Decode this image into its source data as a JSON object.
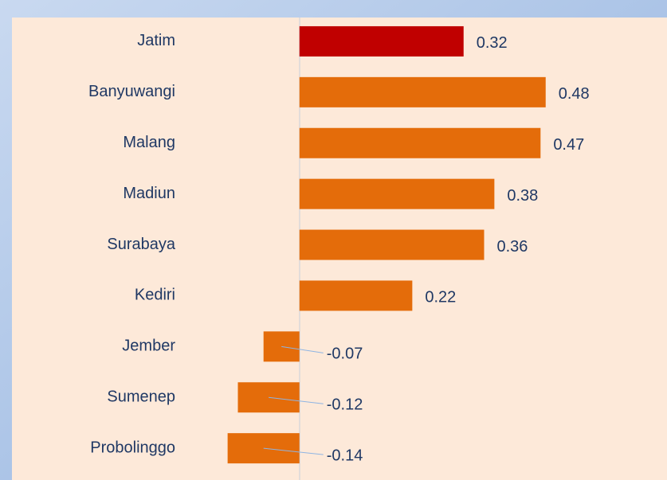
{
  "chart_data": {
    "type": "bar",
    "orientation": "horizontal",
    "categories": [
      "Jatim",
      "Banyuwangi",
      "Malang",
      "Madiun",
      "Surabaya",
      "Kediri",
      "Jember",
      "Sumenep",
      "Probolinggo"
    ],
    "values": [
      0.32,
      0.48,
      0.47,
      0.38,
      0.36,
      0.22,
      -0.07,
      -0.12,
      -0.14
    ],
    "colors": [
      "#c00000",
      "#e46c0a",
      "#e46c0a",
      "#e46c0a",
      "#e46c0a",
      "#e46c0a",
      "#e46c0a",
      "#e46c0a",
      "#e46c0a"
    ],
    "xlim": [
      -0.2,
      0.6
    ]
  }
}
